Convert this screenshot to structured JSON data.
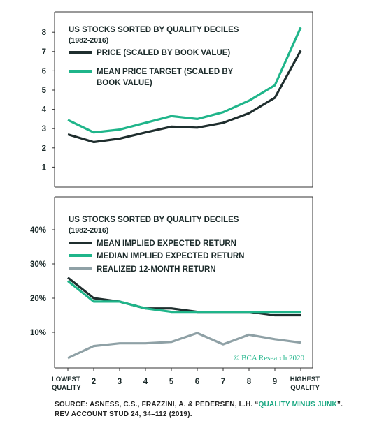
{
  "chart_data": [
    {
      "type": "line",
      "title": "US STOCKS SORTED BY QUALITY DECILES",
      "subtitle": "(1982-2016)",
      "ylim": [
        0,
        8.6
      ],
      "yticks": [
        "1",
        "2",
        "3",
        "4",
        "5",
        "6",
        "7",
        "8"
      ],
      "series": [
        {
          "name": "PRICE (SCALED BY BOOK VALUE)",
          "color": "#1f2e2e",
          "values": [
            2.7,
            2.3,
            2.48,
            2.8,
            3.1,
            3.05,
            3.3,
            3.8,
            4.6,
            7.05
          ]
        },
        {
          "name": "MEAN PRICE TARGET (SCALED BY BOOK VALUE)",
          "color": "#1fb58a",
          "values": [
            3.45,
            2.8,
            2.95,
            3.3,
            3.65,
            3.5,
            3.85,
            4.45,
            5.25,
            8.25
          ]
        }
      ]
    },
    {
      "type": "line",
      "title": "US STOCKS SORTED BY QUALITY DECILES",
      "subtitle": "(1982-2016)",
      "ylim": [
        0,
        43
      ],
      "yticks": [
        "10%",
        "20%",
        "30%",
        "40%"
      ],
      "categories": [
        "LOWEST QUALITY",
        "2",
        "3",
        "4",
        "5",
        "6",
        "7",
        "8",
        "9",
        "HIGHEST QUALITY"
      ],
      "series": [
        {
          "name": "MEAN IMPLIED EXPECTED RETURN",
          "color": "#1f2e2e",
          "values": [
            26,
            20,
            19,
            17,
            17,
            16,
            16,
            16,
            15,
            15
          ]
        },
        {
          "name": "MEDIAN IMPLIED EXPECTED RETURN",
          "color": "#1fb58a",
          "values": [
            25,
            19,
            19,
            17,
            16,
            16,
            16,
            16,
            16,
            16
          ]
        },
        {
          "name": "REALIZED 12-MONTH RETURN",
          "color": "#8fa1a6",
          "values": [
            2.5,
            6,
            6.8,
            6.8,
            7.2,
            9.8,
            6.5,
            9.3,
            8,
            7
          ]
        }
      ],
      "watermark": "© BCA Research 2020"
    }
  ],
  "source": {
    "prefix": "SOURCE: ASNESS, C.S., FRAZZINI, A. & PEDERSEN, L.H. “",
    "highlight": "QUALITY MINUS JUNK",
    "suffix": "”. REV ACCOUNT STUD 24, 34–112 (2019)."
  }
}
